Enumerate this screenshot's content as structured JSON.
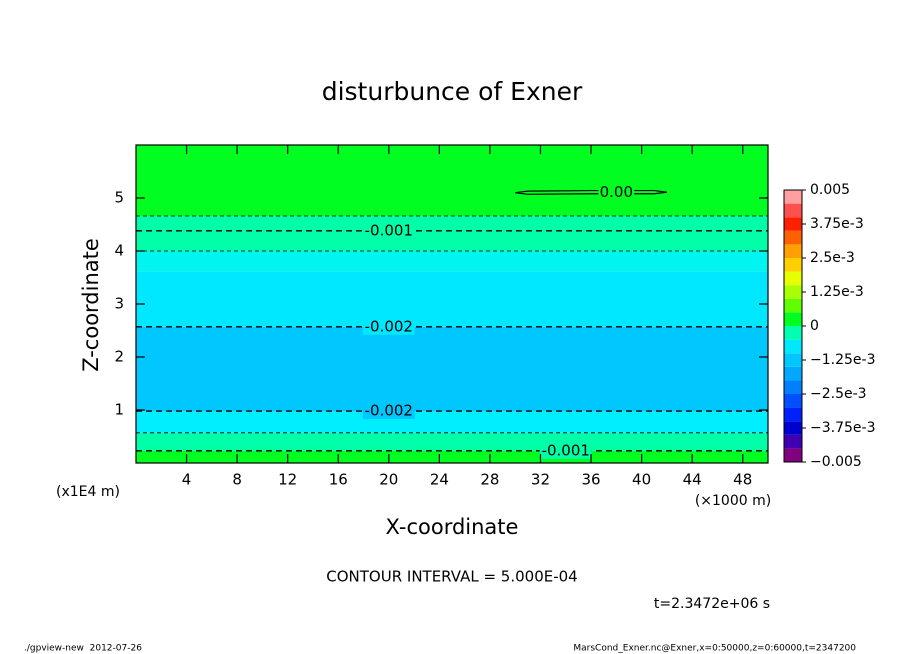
{
  "chart_data": {
    "type": "contour",
    "title": "disturbunce of Exner",
    "x_label": "X-coordinate",
    "y_label": "Z-coordinate",
    "x_unit": "(×1000 m)",
    "y_unit": "(x1E4 m)",
    "xlim": [
      0,
      50
    ],
    "ylim": [
      0,
      6
    ],
    "xticks": [
      4,
      8,
      12,
      16,
      20,
      24,
      28,
      32,
      36,
      40,
      44,
      48
    ],
    "yticks": [
      1,
      2,
      3,
      4,
      5
    ],
    "bands": [
      {
        "zmin": 0,
        "zmax": 0.23,
        "color": "#00ff20"
      },
      {
        "zmin": 0.23,
        "zmax": 0.57,
        "color": "#00ffa8"
      },
      {
        "zmin": 0.57,
        "zmax": 0.98,
        "color": "#00eeff"
      },
      {
        "zmin": 0.98,
        "zmax": 2.57,
        "color": "#00c8ff"
      },
      {
        "zmin": 2.57,
        "zmax": 3.62,
        "color": "#00e8ff"
      },
      {
        "zmin": 3.62,
        "zmax": 4.0,
        "color": "#00f4f0"
      },
      {
        "zmin": 4.0,
        "zmax": 4.66,
        "color": "#00ffa8"
      },
      {
        "zmin": 4.66,
        "zmax": 6,
        "color": "#00ff20"
      }
    ],
    "contours": [
      {
        "level": -0.001,
        "z": 0.23,
        "label": "-0.001",
        "label_x": 34
      },
      {
        "level": -0.0015,
        "z": 0.57
      },
      {
        "level": -0.002,
        "z": 0.98,
        "label": "-0.002",
        "label_x": 20
      },
      {
        "level": -0.002,
        "z": 2.57,
        "label": "-0.002",
        "label_x": 20
      },
      {
        "level": -0.0015,
        "z": 4.0
      },
      {
        "level": -0.001,
        "z": 4.38,
        "label": "-0.001",
        "label_x": 20
      },
      {
        "level": -0.0005,
        "z": 4.66
      }
    ],
    "closed_contour": {
      "level": 0,
      "label": "0.00",
      "label_x": 38,
      "x": [
        30,
        31,
        36,
        41,
        42,
        41,
        36,
        31,
        30
      ],
      "z": [
        5.1,
        5.13,
        5.14,
        5.14,
        5.11,
        5.08,
        5.08,
        5.07,
        5.1
      ]
    },
    "colorbar": {
      "levels": [
        -0.005,
        -0.0045,
        -0.004,
        -0.0035,
        -0.003,
        -0.0025,
        -0.002,
        -0.0015,
        -0.001,
        -0.0005,
        0,
        0.0005,
        0.001,
        0.0015,
        0.002,
        0.0025,
        0.003,
        0.0035,
        0.004,
        0.0045,
        0.005
      ],
      "colors": [
        "#800080",
        "#4000b0",
        "#0000d0",
        "#0020ff",
        "#0050ff",
        "#0080ff",
        "#00a8ff",
        "#00c8ff",
        "#00e8ff",
        "#00ffb0",
        "#00ff20",
        "#60ff00",
        "#a8ff00",
        "#e8ff00",
        "#ffd000",
        "#ffa000",
        "#ff6000",
        "#ff2000",
        "#ff5050",
        "#ffa0a0"
      ],
      "ticks": [
        0.005,
        {
          "value": 0.00375,
          "label": "3.75e-3"
        },
        {
          "value": 0.0025,
          "label": "2.5e-3"
        },
        {
          "value": 0.00125,
          "label": "1.25e-3"
        },
        0,
        {
          "value": -0.00125,
          "label": "−1.25e-3"
        },
        {
          "value": -0.0025,
          "label": "−2.5e-3"
        },
        {
          "value": -0.00375,
          "label": "−3.75e-3"
        },
        {
          "value": -0.005,
          "label": "−0.005"
        }
      ]
    },
    "contour_interval": "CONTOUR INTERVAL = 5.000E-04",
    "time_label": "t=2.3472e+06 s",
    "footer_left": "./gpview-new  2012-07-26",
    "footer_right": "MarsCond_Exner.nc@Exner,x=0:50000,z=0:60000,t=2347200"
  }
}
